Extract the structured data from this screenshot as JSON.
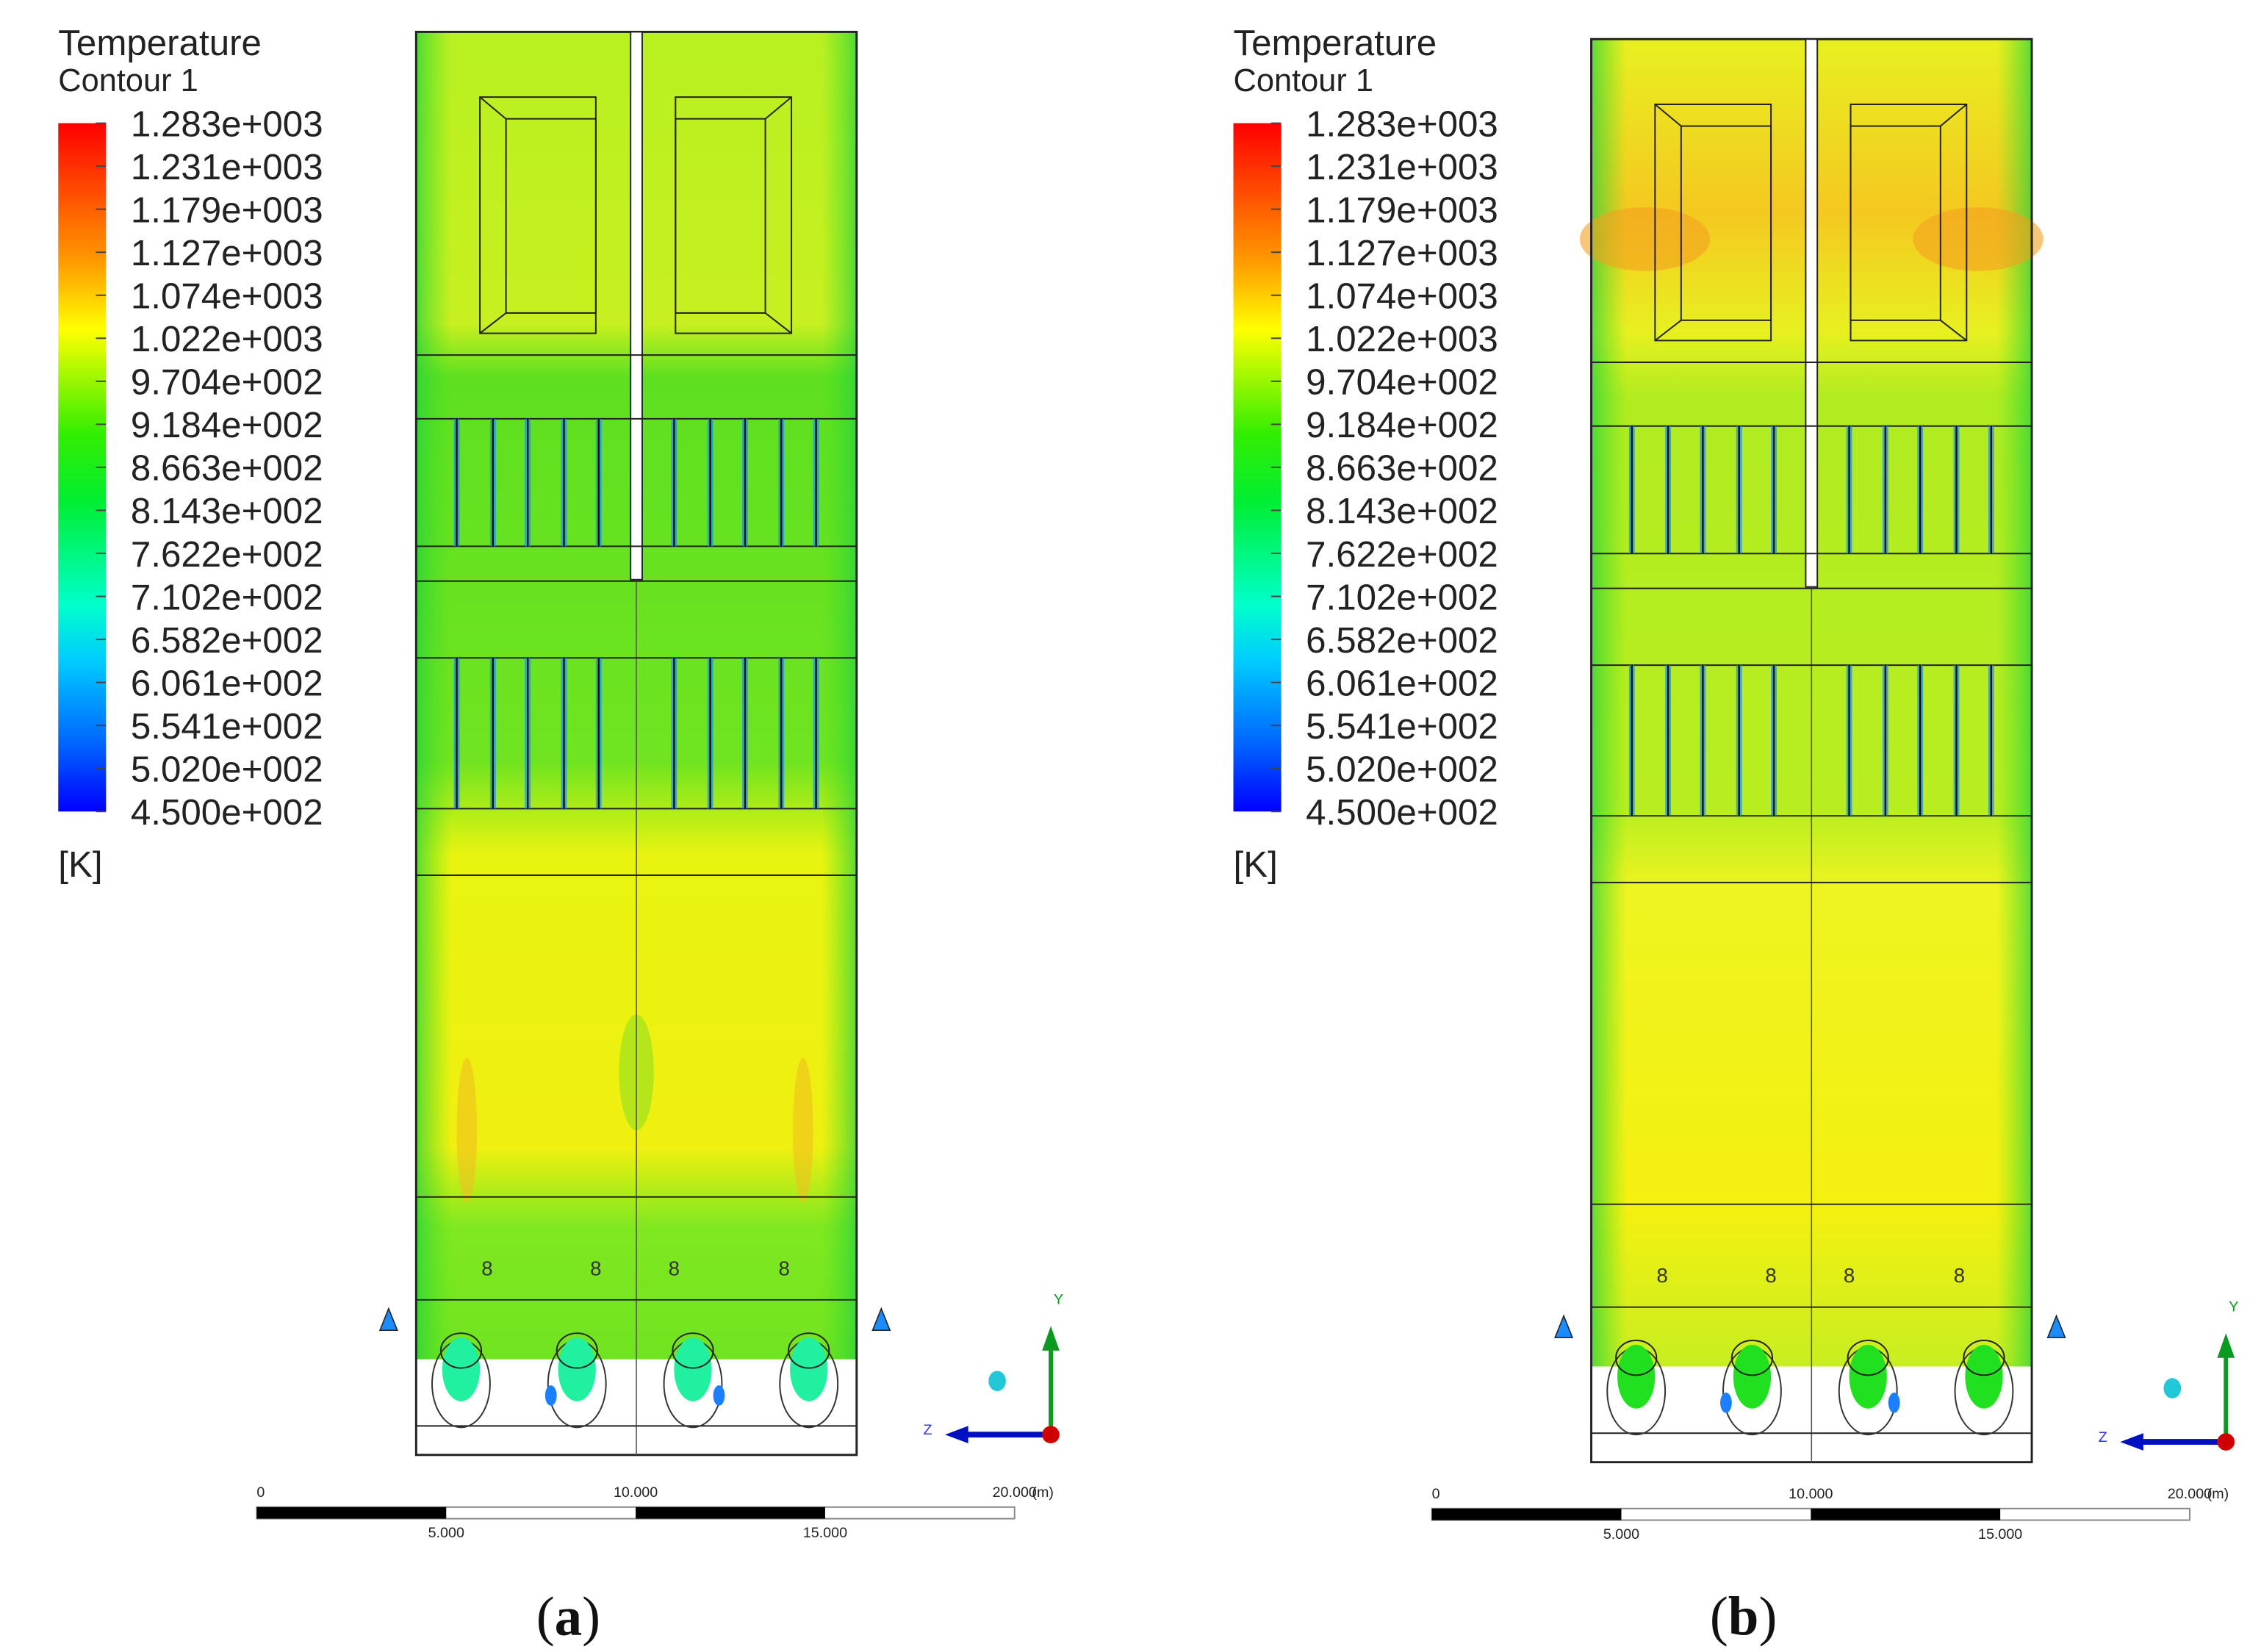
{
  "chart_data": {
    "type": "heatmap",
    "panels": [
      {
        "caption_letter": "a",
        "legend_title": "Temperature",
        "legend_subtitle": "Contour 1",
        "unit": "[K]",
        "field_tone": "green"
      },
      {
        "caption_letter": "b",
        "legend_title": "Temperature",
        "legend_subtitle": "Contour 1",
        "unit": "[K]",
        "field_tone": "yellow"
      }
    ],
    "colorbar_ticks": [
      "1.283e+003",
      "1.231e+003",
      "1.179e+003",
      "1.127e+003",
      "1.074e+003",
      "1.022e+003",
      "9.704e+002",
      "9.184e+002",
      "8.663e+002",
      "8.143e+002",
      "7.622e+002",
      "7.102e+002",
      "6.582e+002",
      "6.061e+002",
      "5.541e+002",
      "5.020e+002",
      "4.500e+002"
    ],
    "colorbar_range": [
      450,
      1283
    ],
    "colors": [
      "#ff0000",
      "#ff8000",
      "#ffff00",
      "#80ff00",
      "#00ff00",
      "#00ffc0",
      "#00ffff",
      "#0080ff",
      "#0000ff"
    ],
    "scale_bar": {
      "top_labels": [
        "0",
        "10.000",
        "20.000"
      ],
      "bottom_labels": [
        "5.000",
        "15.000"
      ],
      "unit": "(m)"
    },
    "axes": {
      "y": "Y",
      "z": "Z"
    }
  }
}
